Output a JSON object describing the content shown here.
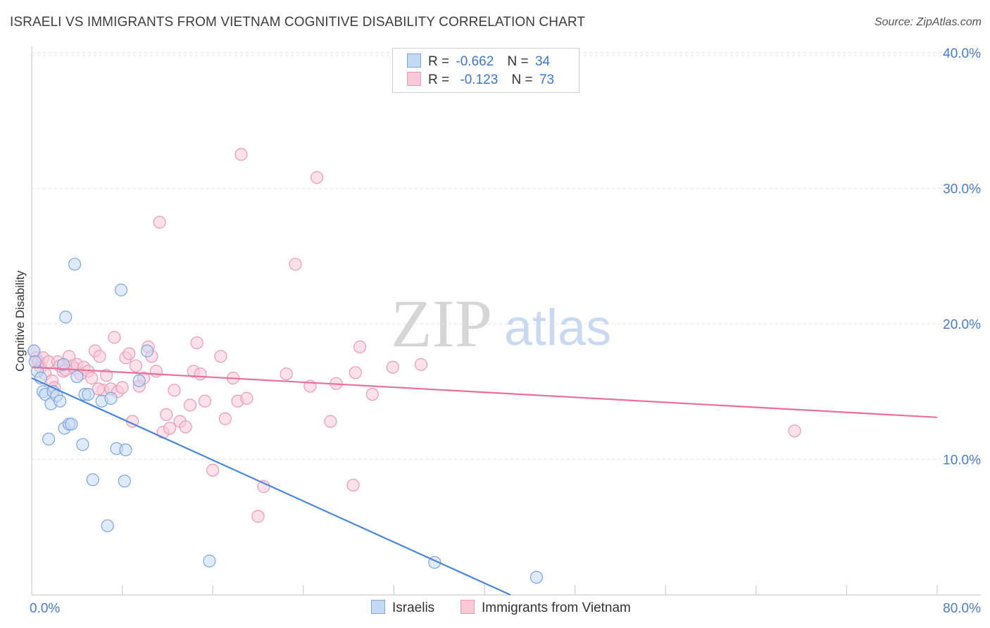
{
  "title": "ISRAELI VS IMMIGRANTS FROM VIETNAM COGNITIVE DISABILITY CORRELATION CHART",
  "source": "Source: ZipAtlas.com",
  "watermark": {
    "zip": "ZIP",
    "atlas": "atlas"
  },
  "colors": {
    "israelis": "#4a86d8",
    "israelis_fill": "#c4d9f5",
    "vietnam": "#e8709a",
    "vietnam_fill": "#f9c9d8",
    "tick": "#4a7cc9",
    "grid": "#e2e2e2"
  },
  "legend": {
    "rows": [
      {
        "r_label": "R =",
        "r_value": "-0.662",
        "n_label": "N =",
        "n_value": "34"
      },
      {
        "r_label": "R =",
        "r_value": "-0.123",
        "n_label": "N =",
        "n_value": "73"
      }
    ]
  },
  "bottom_legend": {
    "israelis": "Israelis",
    "vietnam": "Immigrants from Vietnam"
  },
  "chart_data": {
    "type": "scatter",
    "ylabel": "Cognitive Disability",
    "xlim": [
      0,
      80
    ],
    "ylim": [
      0,
      40
    ],
    "y_ticks": [
      {
        "value": 10,
        "label": "10.0%"
      },
      {
        "value": 20,
        "label": "20.0%"
      },
      {
        "value": 30,
        "label": "30.0%"
      },
      {
        "value": 40,
        "label": "40.0%"
      }
    ],
    "x_tick_labels": [
      {
        "value": 0,
        "label": "0.0%"
      },
      {
        "value": 80,
        "label": "80.0%"
      }
    ],
    "x_minor_ticks": [
      8,
      16,
      24,
      32,
      40,
      48,
      56,
      64,
      72,
      80
    ],
    "series": [
      {
        "name": "Israelis",
        "trend": [
          [
            0,
            16.0
          ],
          [
            42.3,
            0
          ]
        ],
        "points": [
          [
            0.2,
            18.0
          ],
          [
            0.5,
            16.5
          ],
          [
            0.8,
            16.0
          ],
          [
            1.0,
            15.0
          ],
          [
            1.2,
            14.8
          ],
          [
            1.5,
            11.5
          ],
          [
            1.7,
            14.1
          ],
          [
            1.9,
            15.0
          ],
          [
            2.2,
            14.7
          ],
          [
            2.5,
            14.3
          ],
          [
            2.8,
            17.0
          ],
          [
            2.9,
            12.3
          ],
          [
            3.0,
            20.5
          ],
          [
            3.3,
            12.6
          ],
          [
            3.5,
            12.6
          ],
          [
            3.8,
            24.4
          ],
          [
            4.0,
            16.1
          ],
          [
            4.5,
            11.1
          ],
          [
            4.7,
            14.8
          ],
          [
            5.0,
            14.8
          ],
          [
            5.4,
            8.5
          ],
          [
            6.2,
            14.3
          ],
          [
            6.7,
            5.1
          ],
          [
            7.0,
            14.5
          ],
          [
            7.5,
            10.8
          ],
          [
            7.9,
            22.5
          ],
          [
            8.2,
            8.4
          ],
          [
            8.3,
            10.7
          ],
          [
            9.5,
            15.8
          ],
          [
            10.2,
            18.0
          ],
          [
            15.7,
            2.5
          ],
          [
            35.6,
            2.4
          ],
          [
            44.6,
            1.3
          ],
          [
            0.3,
            17.2
          ]
        ]
      },
      {
        "name": "Immigrants from Vietnam",
        "trend": [
          [
            0,
            16.8
          ],
          [
            80,
            13.1
          ]
        ],
        "points": [
          [
            0.2,
            18.0
          ],
          [
            0.4,
            17.5
          ],
          [
            0.6,
            17.2
          ],
          [
            0.8,
            16.8
          ],
          [
            1.0,
            17.5
          ],
          [
            1.2,
            16.3
          ],
          [
            1.5,
            17.2
          ],
          [
            1.8,
            15.8
          ],
          [
            2.0,
            15.3
          ],
          [
            2.3,
            17.2
          ],
          [
            2.5,
            16.9
          ],
          [
            2.8,
            16.5
          ],
          [
            3.0,
            16.6
          ],
          [
            3.3,
            17.6
          ],
          [
            3.6,
            16.9
          ],
          [
            3.8,
            16.7
          ],
          [
            4.0,
            17.0
          ],
          [
            4.3,
            16.3
          ],
          [
            4.6,
            16.8
          ],
          [
            5.0,
            16.5
          ],
          [
            5.3,
            16.0
          ],
          [
            5.6,
            18.0
          ],
          [
            6.0,
            17.6
          ],
          [
            6.3,
            15.1
          ],
          [
            6.6,
            16.2
          ],
          [
            7.0,
            15.2
          ],
          [
            7.3,
            19.0
          ],
          [
            7.6,
            15.0
          ],
          [
            8.0,
            15.3
          ],
          [
            8.3,
            17.5
          ],
          [
            8.6,
            17.8
          ],
          [
            8.9,
            12.8
          ],
          [
            9.2,
            16.9
          ],
          [
            9.5,
            15.4
          ],
          [
            9.9,
            16.0
          ],
          [
            10.3,
            18.3
          ],
          [
            10.6,
            17.6
          ],
          [
            11.0,
            16.5
          ],
          [
            11.3,
            27.5
          ],
          [
            11.6,
            12.0
          ],
          [
            11.9,
            13.3
          ],
          [
            12.2,
            12.3
          ],
          [
            12.6,
            15.1
          ],
          [
            13.1,
            12.8
          ],
          [
            13.6,
            12.4
          ],
          [
            14.0,
            14.0
          ],
          [
            14.3,
            16.5
          ],
          [
            14.6,
            18.6
          ],
          [
            14.9,
            16.3
          ],
          [
            15.3,
            14.3
          ],
          [
            16.0,
            9.2
          ],
          [
            16.7,
            17.6
          ],
          [
            17.1,
            13.0
          ],
          [
            17.8,
            16.0
          ],
          [
            18.2,
            14.3
          ],
          [
            18.5,
            32.5
          ],
          [
            19.0,
            14.5
          ],
          [
            20.0,
            5.8
          ],
          [
            20.5,
            8.0
          ],
          [
            22.5,
            16.3
          ],
          [
            23.3,
            24.4
          ],
          [
            24.6,
            15.4
          ],
          [
            25.2,
            30.8
          ],
          [
            26.4,
            12.8
          ],
          [
            26.9,
            15.6
          ],
          [
            28.4,
            8.1
          ],
          [
            28.6,
            16.4
          ],
          [
            29.0,
            18.3
          ],
          [
            30.1,
            14.8
          ],
          [
            31.9,
            16.8
          ],
          [
            67.4,
            12.1
          ],
          [
            34.4,
            17.0
          ],
          [
            5.9,
            15.2
          ]
        ]
      }
    ]
  }
}
